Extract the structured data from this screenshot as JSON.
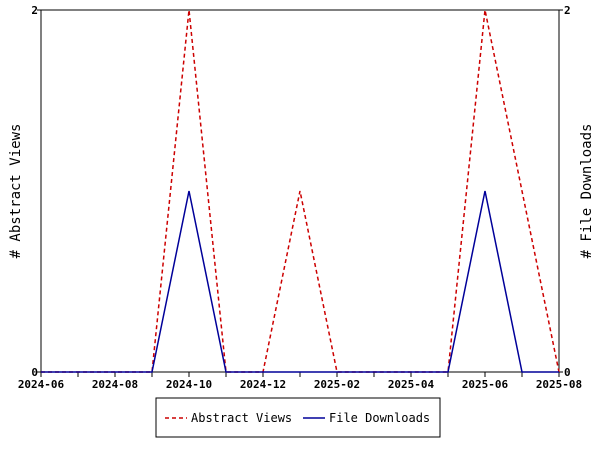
{
  "chart_data": {
    "type": "line",
    "x": [
      "2024-06",
      "2024-07",
      "2024-08",
      "2024-09",
      "2024-10",
      "2024-11",
      "2024-12",
      "2025-01",
      "2025-02",
      "2025-03",
      "2025-04",
      "2025-05",
      "2025-06",
      "2025-07",
      "2025-08"
    ],
    "x_tick_labels": [
      "2024-06",
      "2024-08",
      "2024-10",
      "2024-12",
      "2025-02",
      "2025-04",
      "2025-06",
      "2025-08"
    ],
    "series": [
      {
        "name": "Abstract Views",
        "values": [
          0,
          0,
          0,
          0,
          2,
          0,
          0,
          1,
          0,
          0,
          0,
          0,
          2,
          1,
          0
        ],
        "color": "#cc0000",
        "style": "dashed",
        "axis": "left"
      },
      {
        "name": "File Downloads",
        "values": [
          0,
          0,
          0,
          0,
          1,
          0,
          0,
          0,
          0,
          0,
          0,
          0,
          1,
          0,
          0
        ],
        "color": "#000099",
        "style": "solid",
        "axis": "right"
      }
    ],
    "ylabel_left": "# Abstract Views",
    "ylabel_right": "# File Downloads",
    "ylim_left": [
      0,
      2
    ],
    "ylim_right": [
      0,
      2
    ],
    "y_ticks_left": [
      "0",
      "2"
    ],
    "y_ticks_right": [
      "0",
      "2"
    ],
    "grid": false,
    "legend_position": "bottom"
  }
}
